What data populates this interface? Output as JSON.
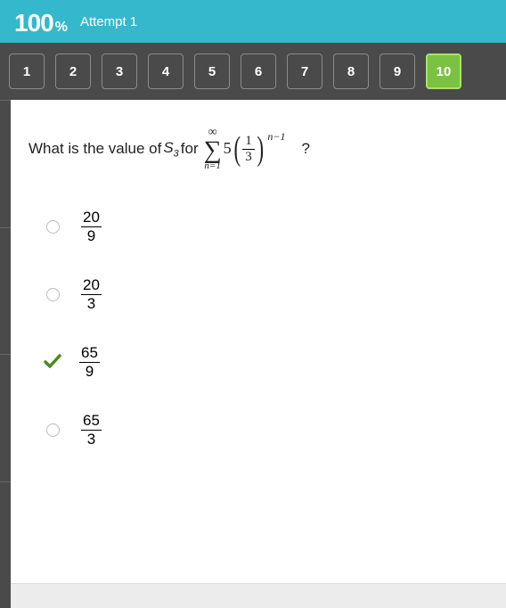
{
  "header": {
    "score": "100",
    "percent": "%",
    "attempt_label": "Attempt 1"
  },
  "nav": {
    "items": [
      "1",
      "2",
      "3",
      "4",
      "5",
      "6",
      "7",
      "8",
      "9",
      "10"
    ],
    "active_index": 9
  },
  "question": {
    "prefix": "What is the value of ",
    "s_var": "S",
    "s_sub": "3",
    "mid": " for ",
    "sigma_top": "∞",
    "sigma_bottom": "n=1",
    "coef": "5",
    "frac_num": "1",
    "frac_den": "3",
    "exponent": "n−1",
    "suffix": "?"
  },
  "options": [
    {
      "num": "20",
      "den": "9",
      "correct": false
    },
    {
      "num": "20",
      "den": "3",
      "correct": false
    },
    {
      "num": "65",
      "den": "9",
      "correct": true
    },
    {
      "num": "65",
      "den": "3",
      "correct": false
    }
  ],
  "colors": {
    "header_bg": "#35b8cc",
    "nav_bg": "#4a4a4a",
    "active_btn": "#7cc242",
    "check_color": "#4a8a1f"
  }
}
